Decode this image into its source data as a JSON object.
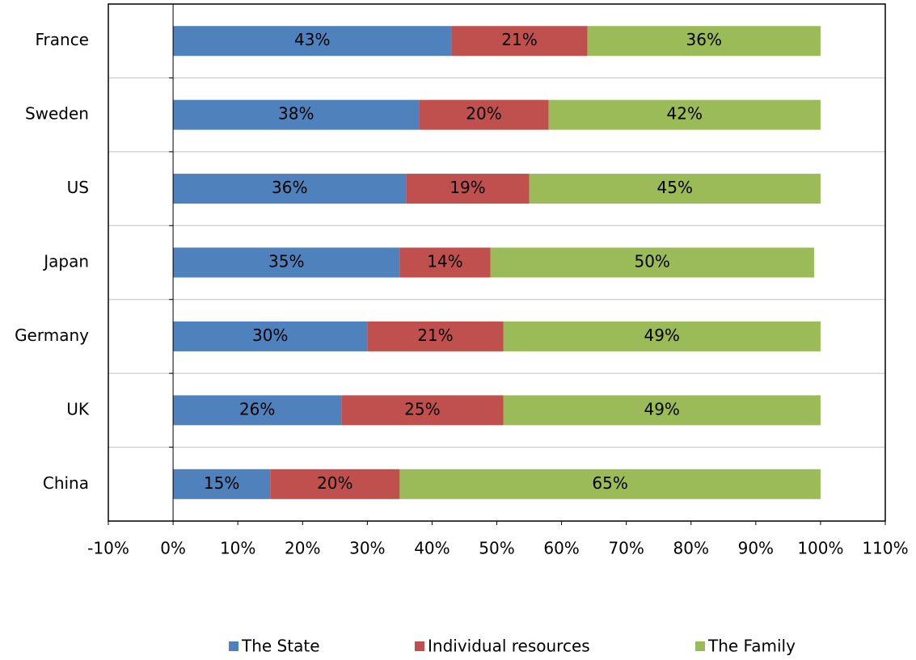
{
  "chart_data": {
    "type": "stacked-bar",
    "orientation": "horizontal",
    "categories": [
      "France",
      "Sweden",
      "US",
      "Japan",
      "Germany",
      "UK",
      "China"
    ],
    "series": [
      {
        "name": "The State",
        "color": "#4f81bd",
        "values": [
          43,
          38,
          36,
          35,
          30,
          26,
          15
        ],
        "value_labels": [
          "43%",
          "38%",
          "36%",
          "35%",
          "30%",
          "26%",
          "15%"
        ]
      },
      {
        "name": "Individual resources",
        "color": "#c0504d",
        "values": [
          21,
          20,
          19,
          14,
          21,
          25,
          20
        ],
        "value_labels": [
          "21%",
          "20%",
          "19%",
          "14%",
          "21%",
          "25%",
          "20%"
        ]
      },
      {
        "name": "The Family",
        "color": "#9bbb59",
        "values": [
          36,
          42,
          45,
          50,
          49,
          49,
          65
        ],
        "value_labels": [
          "36%",
          "42%",
          "45%",
          "50%",
          "49%",
          "49%",
          "65%"
        ]
      }
    ],
    "xlim": [
      -10,
      110
    ],
    "xticks": [
      {
        "value": -10,
        "label": "-10%"
      },
      {
        "value": 0,
        "label": "0%"
      },
      {
        "value": 10,
        "label": "10%"
      },
      {
        "value": 20,
        "label": "20%"
      },
      {
        "value": 30,
        "label": "30%"
      },
      {
        "value": 40,
        "label": "40%"
      },
      {
        "value": 50,
        "label": "50%"
      },
      {
        "value": 60,
        "label": "60%"
      },
      {
        "value": 70,
        "label": "70%"
      },
      {
        "value": 80,
        "label": "80%"
      },
      {
        "value": 90,
        "label": "90%"
      },
      {
        "value": 100,
        "label": "100%"
      },
      {
        "value": 110,
        "label": "110%"
      }
    ],
    "grid": true,
    "legend": "bottom"
  }
}
